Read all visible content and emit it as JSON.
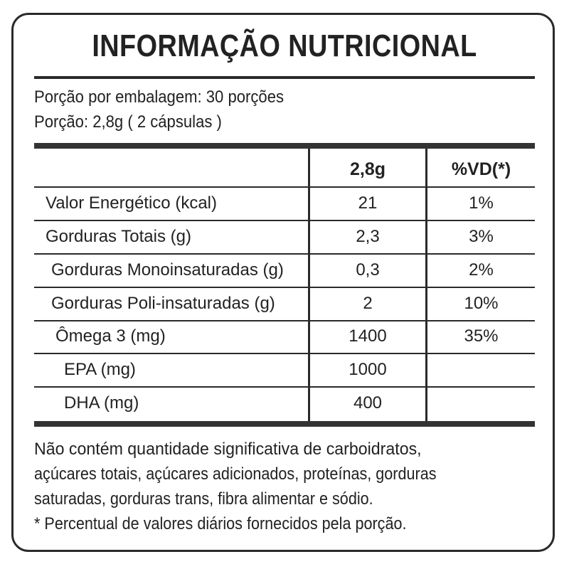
{
  "title": "INFORMAÇÃO NUTRICIONAL",
  "serving": {
    "per_package": "Porção por embalagem: 30 porções",
    "portion": "Porção: 2,8g ( 2 cápsulas )"
  },
  "table": {
    "headers": [
      "",
      "2,8g",
      "%VD(*)"
    ],
    "rows": [
      {
        "nutrient": "Valor Energético (kcal)",
        "amount": "21",
        "dv": "1%"
      },
      {
        "nutrient": "Gorduras Totais (g)",
        "amount": "2,3",
        "dv": "3%"
      },
      {
        "nutrient": "Gorduras Monoinsaturadas (g)",
        "amount": "0,3",
        "dv": "2%"
      },
      {
        "nutrient": "Gorduras Poli-insaturadas (g)",
        "amount": "2",
        "dv": "10%"
      },
      {
        "nutrient": "Ômega 3 (mg)",
        "amount": "1400",
        "dv": "35%"
      },
      {
        "nutrient": "EPA (mg)",
        "amount": "1000",
        "dv": ""
      },
      {
        "nutrient": "DHA (mg)",
        "amount": "400",
        "dv": ""
      }
    ]
  },
  "footer": {
    "line1": "Não contém quantidade significativa de carboidratos,",
    "line2": "açúcares totais, açúcares adicionados, proteínas, gorduras",
    "line3": "saturadas, gorduras trans, fibra alimentar e sódio.",
    "line4": "* Percentual de valores diários fornecidos pela porção."
  },
  "colors": {
    "border": "#2a2a2a",
    "text": "#222222",
    "background": "#ffffff"
  }
}
